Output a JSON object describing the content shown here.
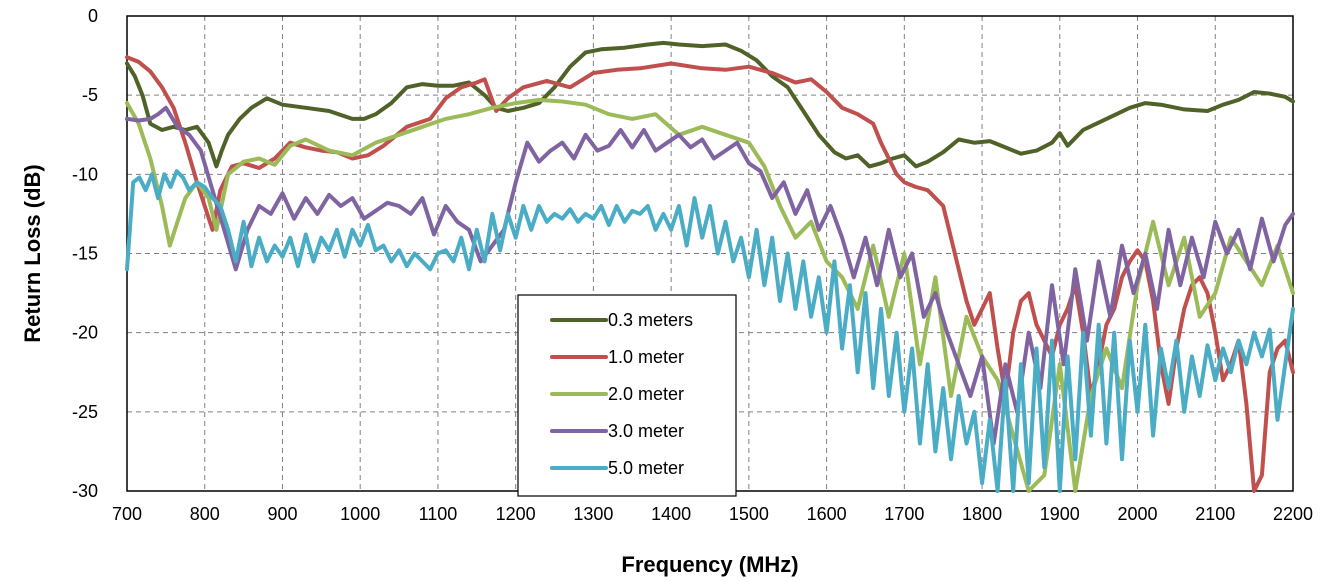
{
  "chart_data": {
    "type": "line",
    "title": "",
    "xlabel": "Frequency (MHz)",
    "ylabel": "Return Loss (dB)",
    "xlim": [
      700,
      2200
    ],
    "ylim": [
      -30,
      0
    ],
    "xticks": [
      700,
      800,
      900,
      1000,
      1100,
      1200,
      1300,
      1400,
      1500,
      1600,
      1700,
      1800,
      1900,
      2000,
      2100,
      2200
    ],
    "yticks": [
      0,
      -5,
      -10,
      -15,
      -20,
      -25,
      -30
    ],
    "grid": true,
    "legend_position": "center",
    "series": [
      {
        "name": "0.3 meters",
        "color": "#4F6228",
        "x": [
          700,
          710,
          720,
          730,
          745,
          760,
          775,
          790,
          805,
          815,
          822,
          830,
          845,
          860,
          880,
          900,
          930,
          960,
          990,
          1005,
          1020,
          1040,
          1060,
          1080,
          1100,
          1120,
          1140,
          1160,
          1175,
          1190,
          1210,
          1230,
          1250,
          1270,
          1290,
          1310,
          1340,
          1370,
          1390,
          1410,
          1440,
          1470,
          1490,
          1510,
          1530,
          1550,
          1570,
          1590,
          1610,
          1625,
          1640,
          1655,
          1670,
          1685,
          1700,
          1715,
          1730,
          1750,
          1770,
          1790,
          1810,
          1830,
          1850,
          1870,
          1890,
          1900,
          1910,
          1930,
          1960,
          1990,
          2010,
          2030,
          2060,
          2090,
          2110,
          2130,
          2150,
          2170,
          2190,
          2200
        ],
        "y": [
          -3.0,
          -3.8,
          -5.0,
          -6.8,
          -7.2,
          -7.0,
          -7.2,
          -7.0,
          -8.0,
          -9.5,
          -8.5,
          -7.5,
          -6.5,
          -5.8,
          -5.2,
          -5.6,
          -5.8,
          -6.0,
          -6.5,
          -6.5,
          -6.2,
          -5.5,
          -4.5,
          -4.3,
          -4.4,
          -4.4,
          -4.2,
          -5.0,
          -5.8,
          -6.0,
          -5.8,
          -5.5,
          -4.5,
          -3.2,
          -2.3,
          -2.1,
          -2.0,
          -1.8,
          -1.7,
          -1.8,
          -1.9,
          -1.8,
          -2.2,
          -2.8,
          -3.8,
          -4.5,
          -6.0,
          -7.5,
          -8.6,
          -9.0,
          -8.8,
          -9.5,
          -9.3,
          -9.0,
          -8.8,
          -9.5,
          -9.2,
          -8.6,
          -7.8,
          -8.0,
          -7.9,
          -8.3,
          -8.7,
          -8.5,
          -8.0,
          -7.4,
          -8.2,
          -7.2,
          -6.5,
          -5.8,
          -5.5,
          -5.6,
          -5.9,
          -6.0,
          -5.6,
          -5.3,
          -4.8,
          -4.9,
          -5.1,
          -5.4
        ]
      },
      {
        "name": "1.0 meter",
        "color": "#C0504D",
        "x": [
          700,
          715,
          730,
          745,
          760,
          775,
          790,
          800,
          810,
          820,
          835,
          850,
          870,
          890,
          910,
          930,
          950,
          970,
          990,
          1010,
          1030,
          1060,
          1090,
          1110,
          1130,
          1150,
          1160,
          1175,
          1190,
          1210,
          1240,
          1270,
          1300,
          1330,
          1360,
          1400,
          1440,
          1470,
          1500,
          1530,
          1560,
          1580,
          1600,
          1620,
          1640,
          1660,
          1670,
          1680,
          1690,
          1700,
          1715,
          1730,
          1750,
          1760,
          1770,
          1780,
          1790,
          1800,
          1810,
          1820,
          1830,
          1840,
          1850,
          1860,
          1870,
          1880,
          1890,
          1900,
          1910,
          1920,
          1930,
          1940,
          1950,
          1960,
          1970,
          1980,
          1990,
          2000,
          2010,
          2020,
          2030,
          2040,
          2050,
          2060,
          2070,
          2080,
          2090,
          2100,
          2110,
          2120,
          2130,
          2140,
          2150,
          2160,
          2170,
          2180,
          2190,
          2200
        ],
        "y": [
          -2.6,
          -2.9,
          -3.5,
          -4.5,
          -5.8,
          -8.0,
          -10.5,
          -12.0,
          -13.5,
          -11.0,
          -9.5,
          -9.3,
          -9.6,
          -9.0,
          -8.0,
          -8.3,
          -8.5,
          -8.6,
          -9.0,
          -8.8,
          -8.2,
          -7.0,
          -6.5,
          -5.2,
          -4.5,
          -4.2,
          -4.0,
          -6.0,
          -5.2,
          -4.5,
          -4.1,
          -4.5,
          -3.6,
          -3.4,
          -3.3,
          -3.0,
          -3.3,
          -3.4,
          -3.2,
          -3.6,
          -4.2,
          -4.0,
          -4.8,
          -5.8,
          -6.2,
          -6.8,
          -8.0,
          -9.0,
          -10.0,
          -10.5,
          -10.8,
          -11.0,
          -12.0,
          -14.0,
          -16.0,
          -18.0,
          -19.5,
          -18.5,
          -17.5,
          -21.0,
          -24.0,
          -20.0,
          -18.0,
          -17.5,
          -19.5,
          -20.5,
          -21.5,
          -19.5,
          -18.5,
          -17.0,
          -20.0,
          -24.0,
          -22.0,
          -19.5,
          -18.5,
          -16.5,
          -15.5,
          -14.8,
          -15.5,
          -18.0,
          -22.0,
          -24.5,
          -21.0,
          -18.5,
          -17.0,
          -16.5,
          -17.5,
          -20.0,
          -23.0,
          -22.0,
          -20.5,
          -24.5,
          -30.5,
          -29.0,
          -22.5,
          -21.0,
          -20.5,
          -22.5
        ]
      },
      {
        "name": "2.0 meter",
        "color": "#9BBB59",
        "x": [
          700,
          715,
          730,
          745,
          755,
          765,
          775,
          790,
          805,
          815,
          830,
          850,
          870,
          890,
          910,
          930,
          960,
          990,
          1020,
          1050,
          1080,
          1110,
          1140,
          1170,
          1200,
          1230,
          1260,
          1290,
          1320,
          1350,
          1380,
          1410,
          1440,
          1470,
          1500,
          1520,
          1540,
          1560,
          1580,
          1600,
          1620,
          1640,
          1660,
          1680,
          1700,
          1720,
          1740,
          1760,
          1780,
          1800,
          1820,
          1840,
          1860,
          1880,
          1900,
          1920,
          1940,
          1960,
          1980,
          2000,
          2020,
          2040,
          2060,
          2080,
          2100,
          2120,
          2140,
          2160,
          2180,
          2200
        ],
        "y": [
          -5.5,
          -6.8,
          -9.0,
          -12.0,
          -14.5,
          -13.0,
          -11.5,
          -10.5,
          -11.5,
          -13.5,
          -10.0,
          -9.2,
          -9.0,
          -9.4,
          -8.2,
          -7.8,
          -8.5,
          -8.8,
          -8.0,
          -7.5,
          -7.0,
          -6.5,
          -6.2,
          -5.8,
          -5.5,
          -5.3,
          -5.4,
          -5.6,
          -6.2,
          -6.5,
          -6.2,
          -7.5,
          -7.0,
          -7.5,
          -8.0,
          -9.5,
          -12.0,
          -14.0,
          -13.0,
          -15.5,
          -16.5,
          -18.5,
          -14.5,
          -19.0,
          -15.0,
          -22.0,
          -16.5,
          -24.0,
          -19.0,
          -21.5,
          -23.0,
          -26.5,
          -30.0,
          -29.0,
          -22.0,
          -30.0,
          -24.0,
          -21.0,
          -23.5,
          -17.0,
          -13.0,
          -17.0,
          -14.0,
          -19.0,
          -17.5,
          -14.0,
          -15.5,
          -17.0,
          -14.5,
          -17.5
        ]
      },
      {
        "name": "3.0 meter",
        "color": "#8064A2",
        "x": [
          700,
          715,
          730,
          740,
          750,
          765,
          780,
          795,
          810,
          825,
          840,
          855,
          870,
          885,
          900,
          915,
          930,
          945,
          960,
          975,
          990,
          1005,
          1020,
          1035,
          1050,
          1065,
          1080,
          1095,
          1110,
          1125,
          1140,
          1155,
          1170,
          1185,
          1200,
          1215,
          1230,
          1245,
          1260,
          1275,
          1290,
          1305,
          1320,
          1335,
          1350,
          1365,
          1380,
          1395,
          1410,
          1425,
          1440,
          1455,
          1470,
          1485,
          1500,
          1515,
          1530,
          1545,
          1560,
          1575,
          1590,
          1605,
          1620,
          1635,
          1650,
          1665,
          1680,
          1695,
          1710,
          1725,
          1740,
          1755,
          1770,
          1785,
          1800,
          1815,
          1830,
          1845,
          1860,
          1875,
          1890,
          1905,
          1920,
          1935,
          1950,
          1965,
          1980,
          1995,
          2010,
          2025,
          2040,
          2055,
          2070,
          2085,
          2100,
          2115,
          2130,
          2145,
          2160,
          2175,
          2190,
          2200
        ],
        "y": [
          -6.5,
          -6.6,
          -6.5,
          -6.2,
          -5.8,
          -7.0,
          -7.5,
          -8.5,
          -11.0,
          -13.5,
          -16.0,
          -13.5,
          -12.0,
          -12.5,
          -11.2,
          -12.8,
          -11.5,
          -12.5,
          -11.3,
          -12.0,
          -11.5,
          -12.8,
          -12.3,
          -11.8,
          -12.0,
          -12.5,
          -11.5,
          -13.8,
          -12.0,
          -13.0,
          -13.5,
          -15.5,
          -14.5,
          -13.5,
          -10.5,
          -8.0,
          -9.2,
          -8.5,
          -8.0,
          -9.0,
          -7.5,
          -8.5,
          -8.2,
          -7.2,
          -8.3,
          -7.2,
          -8.5,
          -8.0,
          -7.5,
          -8.3,
          -7.8,
          -9.0,
          -8.5,
          -8.0,
          -9.3,
          -9.8,
          -11.5,
          -10.5,
          -12.5,
          -11.0,
          -13.5,
          -12.0,
          -14.0,
          -16.5,
          -14.0,
          -17.0,
          -13.5,
          -16.5,
          -15.0,
          -19.0,
          -17.5,
          -20.0,
          -22.0,
          -24.0,
          -21.5,
          -27.0,
          -22.0,
          -25.0,
          -20.0,
          -23.5,
          -17.0,
          -22.0,
          -16.0,
          -20.5,
          -15.5,
          -19.0,
          -14.5,
          -17.5,
          -15.0,
          -18.5,
          -13.5,
          -17.0,
          -14.0,
          -16.5,
          -13.0,
          -15.0,
          -13.5,
          -16.0,
          -12.8,
          -15.5,
          -13.2,
          -12.5
        ]
      },
      {
        "name": "5.0 meter",
        "color": "#4BACC6",
        "x": [
          700,
          708,
          716,
          724,
          732,
          740,
          748,
          756,
          764,
          772,
          780,
          790,
          800,
          810,
          820,
          830,
          840,
          850,
          860,
          870,
          880,
          890,
          900,
          910,
          920,
          930,
          940,
          950,
          960,
          970,
          980,
          990,
          1000,
          1010,
          1020,
          1030,
          1040,
          1050,
          1060,
          1070,
          1080,
          1090,
          1100,
          1110,
          1120,
          1130,
          1140,
          1150,
          1160,
          1170,
          1180,
          1190,
          1200,
          1210,
          1220,
          1230,
          1240,
          1250,
          1260,
          1270,
          1280,
          1290,
          1300,
          1310,
          1320,
          1330,
          1340,
          1350,
          1360,
          1370,
          1380,
          1390,
          1400,
          1410,
          1420,
          1430,
          1440,
          1450,
          1460,
          1470,
          1480,
          1490,
          1500,
          1510,
          1520,
          1530,
          1540,
          1550,
          1560,
          1570,
          1580,
          1590,
          1600,
          1610,
          1620,
          1630,
          1640,
          1650,
          1660,
          1670,
          1680,
          1690,
          1700,
          1710,
          1720,
          1730,
          1740,
          1750,
          1760,
          1770,
          1780,
          1790,
          1800,
          1810,
          1820,
          1830,
          1840,
          1850,
          1860,
          1870,
          1880,
          1890,
          1900,
          1910,
          1920,
          1930,
          1940,
          1950,
          1960,
          1970,
          1980,
          1990,
          2000,
          2010,
          2020,
          2030,
          2040,
          2050,
          2060,
          2070,
          2080,
          2090,
          2100,
          2110,
          2120,
          2130,
          2140,
          2150,
          2160,
          2170,
          2180,
          2190,
          2200
        ],
        "y": [
          -16.0,
          -10.5,
          -10.2,
          -11.0,
          -10.0,
          -11.5,
          -10.0,
          -10.8,
          -9.8,
          -10.2,
          -11.0,
          -10.5,
          -10.8,
          -11.5,
          -12.0,
          -13.5,
          -15.5,
          -13.0,
          -15.8,
          -14.0,
          -15.5,
          -14.5,
          -15.2,
          -14.0,
          -15.8,
          -13.8,
          -15.5,
          -14.0,
          -14.8,
          -13.5,
          -15.2,
          -13.5,
          -14.5,
          -13.2,
          -14.8,
          -14.5,
          -15.5,
          -14.8,
          -15.8,
          -15.0,
          -15.5,
          -16.0,
          -15.0,
          -14.8,
          -15.5,
          -14.0,
          -16.0,
          -13.5,
          -15.5,
          -12.5,
          -14.8,
          -12.5,
          -14.0,
          -12.0,
          -13.5,
          -12.0,
          -13.0,
          -12.5,
          -12.8,
          -12.2,
          -13.0,
          -12.5,
          -12.8,
          -12.0,
          -13.2,
          -12.0,
          -13.0,
          -12.3,
          -12.5,
          -12.0,
          -13.5,
          -12.5,
          -13.5,
          -12.0,
          -14.5,
          -11.5,
          -14.0,
          -12.0,
          -15.0,
          -13.0,
          -15.5,
          -14.0,
          -16.5,
          -13.5,
          -17.0,
          -14.0,
          -18.0,
          -15.0,
          -18.5,
          -15.5,
          -19.0,
          -16.5,
          -20.0,
          -15.5,
          -21.0,
          -17.0,
          -22.5,
          -17.5,
          -23.5,
          -18.5,
          -24.0,
          -20.0,
          -25.0,
          -21.0,
          -27.0,
          -22.0,
          -27.5,
          -23.5,
          -28.0,
          -24.0,
          -27.0,
          -25.0,
          -29.5,
          -25.5,
          -30.0,
          -23.0,
          -30.0,
          -22.0,
          -29.5,
          -21.0,
          -28.5,
          -20.5,
          -30.0,
          -21.5,
          -28.0,
          -20.0,
          -26.5,
          -19.5,
          -27.0,
          -20.0,
          -28.0,
          -20.5,
          -25.0,
          -19.5,
          -26.5,
          -21.0,
          -23.5,
          -20.5,
          -25.0,
          -21.5,
          -24.0,
          -20.8,
          -23.0,
          -21.0,
          -22.5,
          -20.5,
          -22.0,
          -20.0,
          -21.5,
          -19.8,
          -25.5,
          -22.0,
          -18.5
        ]
      }
    ]
  }
}
